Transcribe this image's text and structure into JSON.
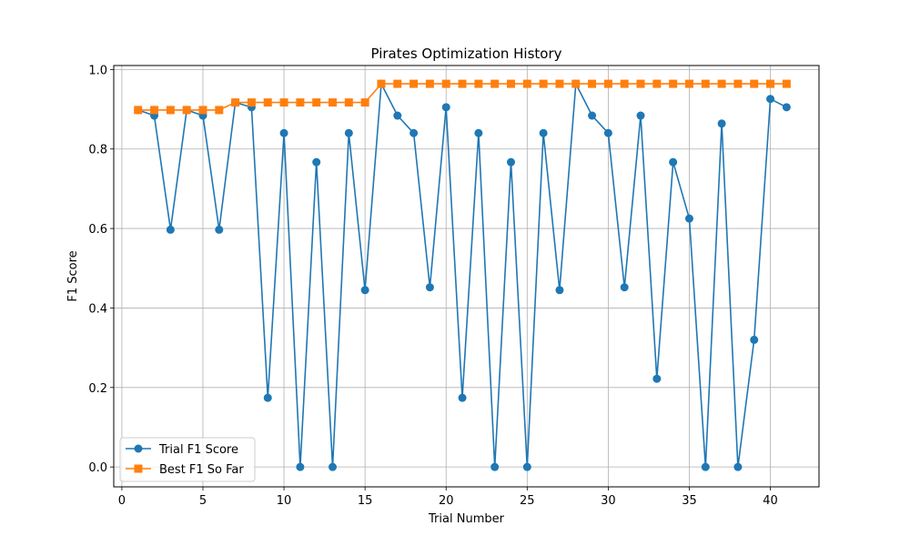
{
  "chart_data": {
    "type": "line",
    "title": "Pirates Optimization History",
    "xlabel": "Trial Number",
    "ylabel": "F1 Score",
    "xlim": [
      -0.5,
      43
    ],
    "ylim": [
      -0.05,
      1.01
    ],
    "xticks": [
      0,
      5,
      10,
      15,
      20,
      25,
      30,
      35,
      40
    ],
    "yticks": [
      0.0,
      0.2,
      0.4,
      0.6,
      0.8,
      1.0
    ],
    "grid": true,
    "legend_position": "lower-left",
    "x": [
      1,
      2,
      3,
      4,
      5,
      6,
      7,
      8,
      9,
      10,
      11,
      12,
      13,
      14,
      15,
      16,
      17,
      18,
      19,
      20,
      21,
      22,
      23,
      24,
      25,
      26,
      27,
      28,
      29,
      30,
      31,
      32,
      33,
      34,
      35,
      36,
      37,
      38,
      39,
      40,
      41
    ],
    "series": [
      {
        "name": "Trial F1 Score",
        "color": "#1f77b4",
        "marker": "circle",
        "values": [
          0.898,
          0.884,
          0.597,
          0.898,
          0.884,
          0.597,
          0.917,
          0.905,
          0.174,
          0.84,
          0.0,
          0.767,
          0.0,
          0.84,
          0.445,
          0.964,
          0.884,
          0.84,
          0.452,
          0.905,
          0.174,
          0.84,
          0.0,
          0.767,
          0.0,
          0.84,
          0.445,
          0.964,
          0.884,
          0.84,
          0.452,
          0.884,
          0.222,
          0.767,
          0.625,
          0.0,
          0.864,
          0.0,
          0.32,
          0.926,
          0.905
        ]
      },
      {
        "name": "Best F1 So Far",
        "color": "#ff7f0e",
        "marker": "square",
        "values": [
          0.898,
          0.898,
          0.898,
          0.898,
          0.898,
          0.898,
          0.917,
          0.917,
          0.917,
          0.917,
          0.917,
          0.917,
          0.917,
          0.917,
          0.917,
          0.964,
          0.964,
          0.964,
          0.964,
          0.964,
          0.964,
          0.964,
          0.964,
          0.964,
          0.964,
          0.964,
          0.964,
          0.964,
          0.964,
          0.964,
          0.964,
          0.964,
          0.964,
          0.964,
          0.964,
          0.964,
          0.964,
          0.964,
          0.964,
          0.964,
          0.964
        ]
      }
    ]
  }
}
